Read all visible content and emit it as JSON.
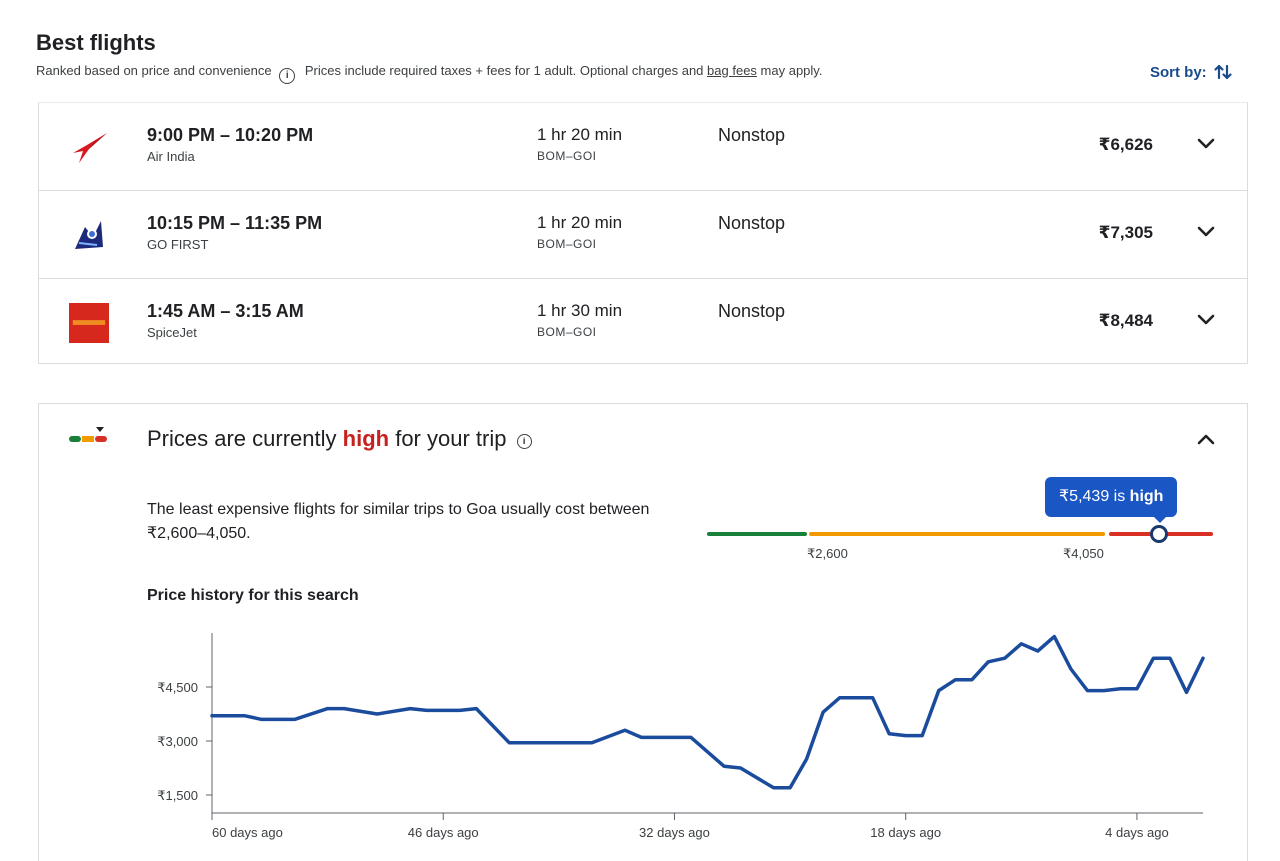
{
  "header": {
    "title": "Best flights",
    "ranked_text": "Ranked based on price and convenience",
    "prices_text_before": "Prices include required taxes + fees for 1 adult. Optional charges and",
    "bag_fees_link": "bag fees",
    "prices_text_after": "may apply.",
    "sort_label": "Sort by:"
  },
  "flights": [
    {
      "times": "9:00 PM – 10:20 PM",
      "airline": "Air India",
      "duration": "1 hr 20 min",
      "route": "BOM–GOI",
      "stops": "Nonstop",
      "price": "₹6,626",
      "logo_icon": "air-india-logo"
    },
    {
      "times": "10:15 PM – 11:35 PM",
      "airline": "GO FIRST",
      "duration": "1 hr 20 min",
      "route": "BOM–GOI",
      "stops": "Nonstop",
      "price": "₹7,305",
      "logo_icon": "go-first-logo"
    },
    {
      "times": "1:45 AM – 3:15 AM",
      "airline": "SpiceJet",
      "duration": "1 hr 30 min",
      "route": "BOM–GOI",
      "stops": "Nonstop",
      "price": "₹8,484",
      "logo_icon": "spicejet-logo"
    }
  ],
  "price_insight": {
    "title_before": "Prices are currently",
    "title_highlight": "high",
    "title_after": "for your trip",
    "description": "The least expensive flights for similar trips to Goa usually cost between ₹2,600–4,050.",
    "tooltip_value": "₹5,439 is",
    "tooltip_highlight": "high",
    "range_low_label": "₹2,600",
    "range_high_label": "₹4,050",
    "current_price": 5439,
    "history_title": "Price history for this search",
    "colors": {
      "low": "#188038",
      "typical": "#f29900",
      "high": "#d93025",
      "line": "#1a4b9c",
      "tooltip": "#1a56c4"
    }
  },
  "chart_data": {
    "type": "line",
    "title": "Price history for this search",
    "xlabel": "",
    "ylabel": "",
    "x_ticks": [
      "60 days ago",
      "46 days ago",
      "32 days ago",
      "18 days ago",
      "4 days ago"
    ],
    "y_ticks": [
      "₹1,500",
      "₹3,000",
      "₹4,500"
    ],
    "y_tick_values": [
      1500,
      3000,
      4500
    ],
    "ylim": [
      1000,
      6000
    ],
    "xlim": [
      -60,
      0
    ],
    "grid": false,
    "series": [
      {
        "x": [
          -60,
          -58,
          -57,
          -55,
          -53,
          -52,
          -50,
          -48,
          -47,
          -45,
          -44,
          -42,
          -40,
          -39,
          -37,
          -35,
          -34,
          -33,
          -31,
          -29,
          -28,
          -26,
          -25,
          -24,
          -23,
          -22,
          -21,
          -20,
          -19,
          -18,
          -17,
          -16,
          -15,
          -14,
          -13,
          -12,
          -11,
          -10,
          -9,
          -8,
          -7,
          -6,
          -5,
          -4,
          -3,
          -2,
          -1,
          0
        ],
        "y": [
          3700,
          3700,
          3600,
          3600,
          3900,
          3900,
          3750,
          3900,
          3850,
          3850,
          3900,
          2950,
          2950,
          2950,
          2950,
          3300,
          3100,
          3100,
          3100,
          2300,
          2250,
          1700,
          1700,
          2500,
          3800,
          4200,
          4200,
          4200,
          3200,
          3150,
          3150,
          4400,
          4700,
          4700,
          5200,
          5300,
          5700,
          5500,
          5900,
          5000,
          4400,
          4400,
          4450,
          4450,
          5300,
          5300,
          4350,
          5300
        ]
      }
    ]
  }
}
